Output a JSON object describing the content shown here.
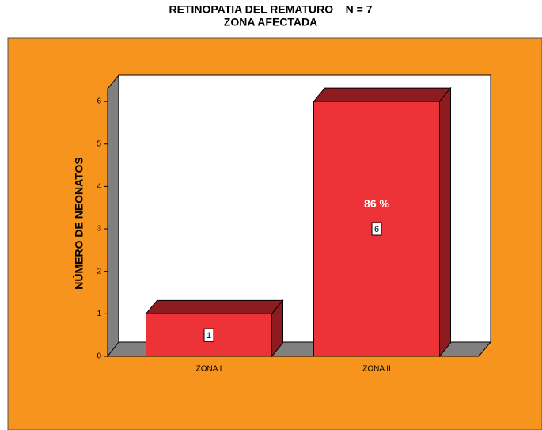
{
  "chart_data": {
    "type": "bar3d",
    "title": "RETINOPATIA DEL REMATURO    N = 7",
    "subtitle": "ZONA AFECTADA",
    "y_label": "NÚMERO DE NEONATOS",
    "categories": [
      "ZONA I",
      "ZONA II"
    ],
    "values": [
      1,
      6
    ],
    "value_labels": [
      "1",
      "6"
    ],
    "annotation": "86 %",
    "color": "#ee3338",
    "ylim": [
      0,
      6.3
    ],
    "yticks": [
      0,
      1,
      2,
      3,
      4,
      5,
      6
    ]
  }
}
